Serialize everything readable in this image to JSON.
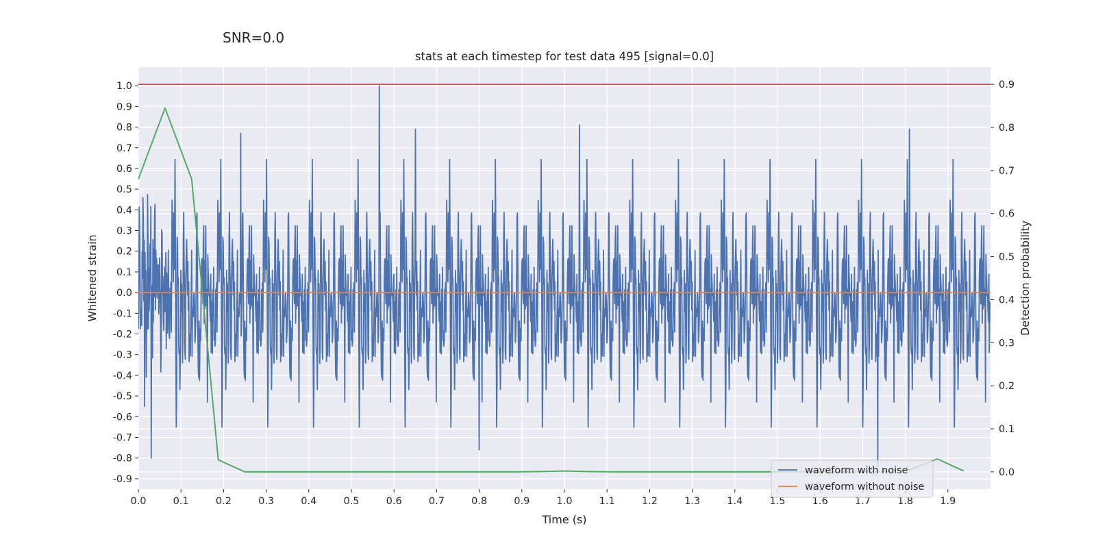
{
  "chart_data": {
    "type": "line",
    "suptitle": "SNR=0.0",
    "title": "stats at each timestep for test data 495 [signal=0.0]",
    "xlabel": "Time (s)",
    "ylabel": "Whitened strain",
    "y2label": "Detection probability",
    "xlim": [
      0.0,
      2.0
    ],
    "ylim": [
      -0.95,
      1.09
    ],
    "y2lim": [
      -0.04,
      0.94
    ],
    "xticks": [
      "0.0",
      "0.1",
      "0.2",
      "0.3",
      "0.4",
      "0.5",
      "0.6",
      "0.7",
      "0.8",
      "0.9",
      "1.0",
      "1.1",
      "1.2",
      "1.3",
      "1.4",
      "1.5",
      "1.6",
      "1.7",
      "1.8",
      "1.9"
    ],
    "yticks": [
      "-0.9",
      "-0.8",
      "-0.7",
      "-0.6",
      "-0.5",
      "-0.4",
      "-0.3",
      "-0.2",
      "-0.1",
      "0.0",
      "0.1",
      "0.2",
      "0.3",
      "0.4",
      "0.5",
      "0.6",
      "0.7",
      "0.8",
      "0.9",
      "1.0"
    ],
    "y2ticks": [
      "0.0",
      "0.1",
      "0.2",
      "0.3",
      "0.4",
      "0.5",
      "0.6",
      "0.7",
      "0.8",
      "0.9"
    ],
    "grid": true,
    "legend_position": "lower-right",
    "series": [
      {
        "name": "waveform with noise",
        "axis": "left",
        "color": "#4c72b0",
        "description": "whitened noisy strain, approx. 2048 samples over 0–2 s, amplitude roughly within -0.85..1.0",
        "peaks": [
          {
            "x": 0.565,
            "y": 1.0
          },
          {
            "x": 1.035,
            "y": 0.81
          },
          {
            "x": 1.81,
            "y": 0.79
          },
          {
            "x": 0.65,
            "y": 0.79
          },
          {
            "x": 0.24,
            "y": 0.77
          },
          {
            "x": 1.735,
            "y": -0.86
          },
          {
            "x": 0.03,
            "y": -0.8
          },
          {
            "x": 0.8,
            "y": -0.76
          }
        ]
      },
      {
        "name": "waveform without noise",
        "axis": "left",
        "color": "#dd8452",
        "x": [
          0.0,
          2.0
        ],
        "y": [
          0.0,
          0.0
        ]
      },
      {
        "axis": "right",
        "color": "#55a868",
        "x": [
          0.0,
          0.0625,
          0.125,
          0.1875,
          0.25,
          0.3125,
          0.375,
          0.4375,
          0.5,
          0.5625,
          0.625,
          0.6875,
          0.75,
          0.8125,
          0.875,
          0.9375,
          1.0,
          1.0625,
          1.125,
          1.1875,
          1.25,
          1.3125,
          1.375,
          1.4375,
          1.5,
          1.5625,
          1.625,
          1.6875,
          1.75,
          1.8125,
          1.875,
          1.9375
        ],
        "y": [
          0.68,
          0.845,
          0.68,
          0.028,
          0.0,
          0.0,
          0.0,
          0.0,
          0.0,
          0.0,
          0.0,
          0.0,
          0.0,
          0.0,
          0.0,
          0.0005,
          0.002,
          0.0005,
          0.0,
          0.0,
          0.0,
          0.0,
          0.0,
          0.0,
          0.0,
          0.0,
          0.0,
          0.0,
          0.001,
          0.005,
          0.03,
          0.002
        ]
      },
      {
        "axis": "right",
        "color": "#c44e52",
        "x": [
          0.0,
          2.0
        ],
        "y": [
          0.9,
          0.9
        ]
      }
    ]
  }
}
